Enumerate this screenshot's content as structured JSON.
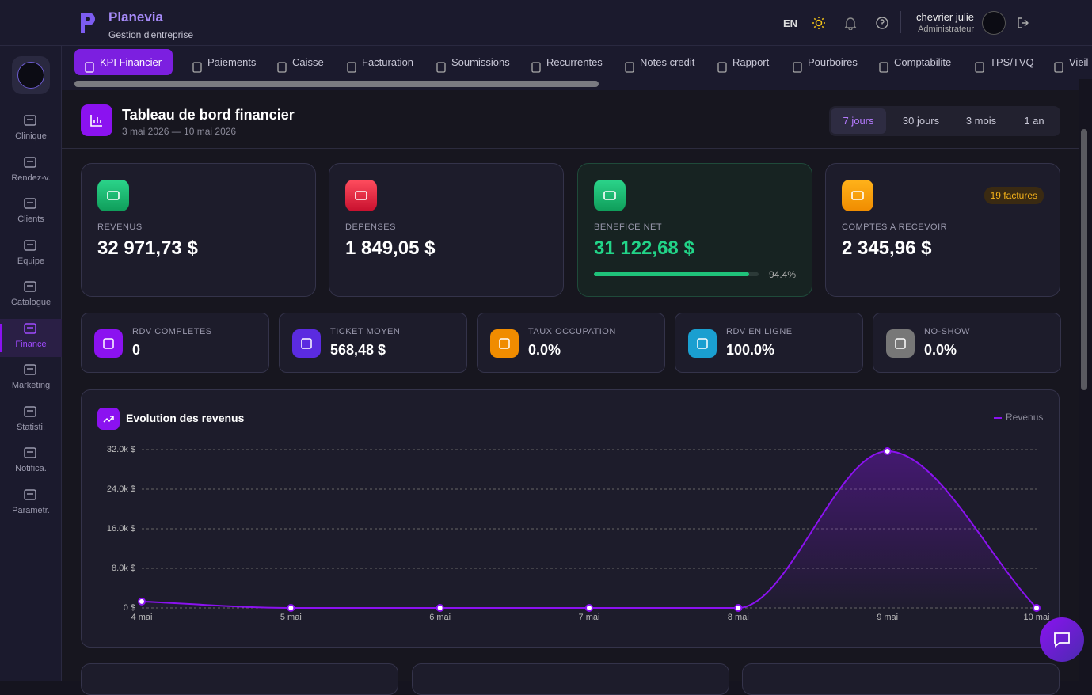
{
  "header": {
    "brand": "Planevia",
    "subtitle": "Gestion d'entreprise",
    "lang": "EN",
    "user_name": "chevrier julie",
    "user_role": "Administrateur"
  },
  "sidebar": [
    "Clinique",
    "Rendez-v.",
    "Clients",
    "Equipe",
    "Catalogue",
    "Finance",
    "Marketing",
    "Statisti.",
    "Notifica.",
    "Parametr."
  ],
  "tabs": [
    "KPI Financier",
    "Paiements",
    "Caisse",
    "Facturation",
    "Soumissions",
    "Recurrentes",
    "Notes credit",
    "Rapport",
    "Pourboires",
    "Comptabilite",
    "TPS/TVQ",
    "Vieil"
  ],
  "dashboard": {
    "title": "Tableau de bord financier",
    "date_range": "3 mai 2026 — 10 mai 2026",
    "periods": [
      "7 jours",
      "30 jours",
      "3 mois",
      "1 an"
    ]
  },
  "kpis": [
    {
      "label": "REVENUS",
      "value": "32 971,73 $"
    },
    {
      "label": "DEPENSES",
      "value": "1 849,05 $"
    },
    {
      "label": "BENEFICE NET",
      "value": "31 122,68 $",
      "progress": 94.4,
      "progress_label": "94.4%"
    },
    {
      "label": "COMPTES A RECEVOIR",
      "value": "2 345,96 $",
      "badge": "19 factures"
    }
  ],
  "stats": [
    {
      "label": "RDV COMPLETES",
      "value": "0"
    },
    {
      "label": "TICKET MOYEN",
      "value": "568,48 $"
    },
    {
      "label": "TAUX OCCUPATION",
      "value": "0.0%"
    },
    {
      "label": "RDV EN LIGNE",
      "value": "100.0%"
    },
    {
      "label": "NO-SHOW",
      "value": "0.0%"
    }
  ],
  "chart_data": {
    "type": "line",
    "title": "Evolution des revenus",
    "categories": [
      "4 mai",
      "5 mai",
      "6 mai",
      "7 mai",
      "8 mai",
      "9 mai",
      "10 mai"
    ],
    "series": [
      {
        "name": "Revenus",
        "color": "#8b12f0",
        "values": [
          1300,
          0,
          0,
          0,
          0,
          31672,
          0
        ]
      }
    ],
    "ylim": [
      0,
      32000
    ],
    "yticks": [
      {
        "value": 0,
        "label": "0 $"
      },
      {
        "value": 8000,
        "label": "8.0k $"
      },
      {
        "value": 16000,
        "label": "16.0k $"
      },
      {
        "value": 24000,
        "label": "24.0k $"
      },
      {
        "value": 32000,
        "label": "32.0k $"
      }
    ],
    "grid": true,
    "legend": "top-right"
  }
}
